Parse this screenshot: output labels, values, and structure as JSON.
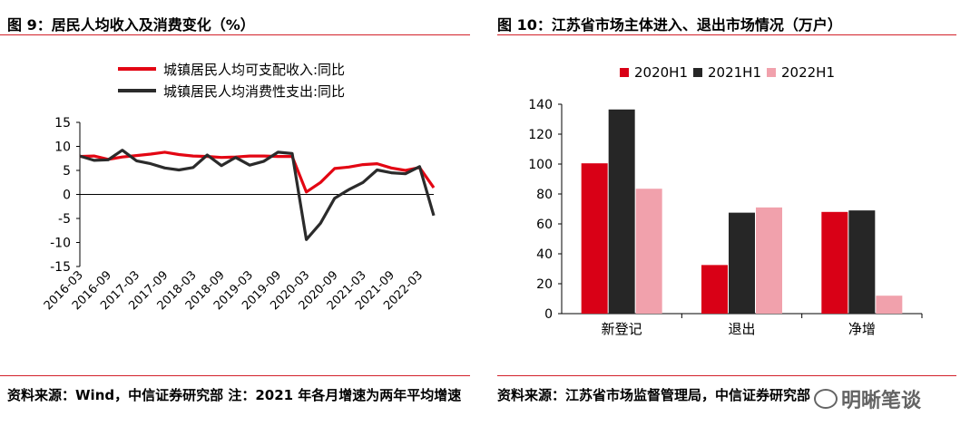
{
  "left": {
    "title": "图 9：居民人均收入及消费变化（%）",
    "source": "资料来源：Wind，中信证券研究部  注：2021 年各月增速为两年平均增速"
  },
  "right": {
    "title": "图 10：江苏省市场主体进入、退出市场情况（万户）",
    "source": "资料来源：江苏省市场监督管理局，中信证券研究部"
  },
  "watermark": "明晰笔谈",
  "chart_data": [
    {
      "type": "line",
      "title": "图 9：居民人均收入及消费变化（%）",
      "ylim": [
        -15,
        15
      ],
      "yticks": [
        15,
        10,
        5,
        0,
        -5,
        -10,
        -15
      ],
      "x": [
        "2016-03",
        "2016-06",
        "2016-09",
        "2016-12",
        "2017-03",
        "2017-06",
        "2017-09",
        "2017-12",
        "2018-03",
        "2018-06",
        "2018-09",
        "2018-12",
        "2019-03",
        "2019-06",
        "2019-09",
        "2019-12",
        "2020-03",
        "2020-06",
        "2020-09",
        "2020-12",
        "2021-03",
        "2021-06",
        "2021-09",
        "2021-12",
        "2022-03",
        "2022-06"
      ],
      "xtick_labels": [
        "2016-03",
        "2016-09",
        "2017-03",
        "2017-09",
        "2018-03",
        "2018-09",
        "2019-03",
        "2019-09",
        "2020-03",
        "2020-09",
        "2021-03",
        "2021-09",
        "2022-03"
      ],
      "legend_position": "top-left",
      "series": [
        {
          "name": "城镇居民人均可支配收入:同比",
          "color": "#e30613",
          "values": [
            7.9,
            8.0,
            7.3,
            7.8,
            8.1,
            8.4,
            8.8,
            8.3,
            8.0,
            7.9,
            7.7,
            7.8,
            8.0,
            8.0,
            7.9,
            7.9,
            0.5,
            2.5,
            5.4,
            5.7,
            6.2,
            6.4,
            5.5,
            5.0,
            5.6,
            1.4
          ]
        },
        {
          "name": "城镇居民人均消费性支出:同比",
          "color": "#2b2b2b",
          "values": [
            8.0,
            7.1,
            7.2,
            9.2,
            7.0,
            6.4,
            5.5,
            5.1,
            5.6,
            8.2,
            6.0,
            7.7,
            6.1,
            6.9,
            8.8,
            8.5,
            -9.4,
            -6.0,
            -0.8,
            1.0,
            2.5,
            5.1,
            4.5,
            4.3,
            5.8,
            -4.4
          ]
        }
      ]
    },
    {
      "type": "bar",
      "title": "图 10：江苏省市场主体进入、退出市场情况（万户）",
      "categories": [
        "新登记",
        "退出",
        "净增"
      ],
      "ylim": [
        0,
        140
      ],
      "yticks": [
        0,
        20,
        40,
        60,
        80,
        100,
        120,
        140
      ],
      "legend_position": "top-center",
      "series": [
        {
          "name": "2020H1",
          "color": "#d90016",
          "values": [
            100.5,
            32.5,
            68.0
          ]
        },
        {
          "name": "2021H1",
          "color": "#262626",
          "values": [
            136.5,
            67.5,
            69.0
          ]
        },
        {
          "name": "2022H1",
          "color": "#f1a1ac",
          "values": [
            83.5,
            71.0,
            12.0
          ]
        }
      ]
    }
  ]
}
